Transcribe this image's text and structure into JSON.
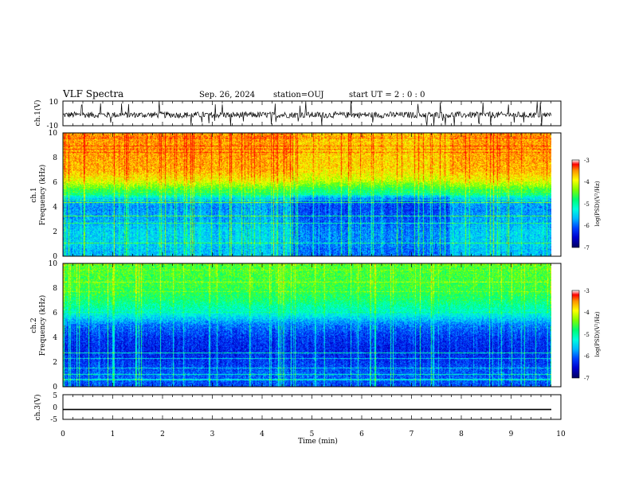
{
  "header": {
    "title": "VLF Spectra",
    "date": "Sep. 26, 2024",
    "station": "station=OUJ",
    "start": "start  UT  =   2 : 0  : 0"
  },
  "chart_data": [
    {
      "type": "line",
      "panel": "ch1-waveform",
      "ylabel": "ch.1(V)",
      "ylim": [
        -10,
        10
      ],
      "yticks": [
        "10",
        "-10"
      ],
      "xlim": [
        0,
        10
      ],
      "mean_level": -1.2,
      "noise_band": [
        -3.5,
        1.5
      ],
      "color": "#000000"
    },
    {
      "type": "heatmap",
      "panel": "ch1-spectrogram",
      "ylabel": "ch.1\nFrequency (kHz)",
      "ylim": [
        0,
        10
      ],
      "yticks": [
        "0",
        "2",
        "4",
        "6",
        "8",
        "10"
      ],
      "xlim": [
        0,
        9.85
      ],
      "profile": [
        {
          "f": 0.0,
          "v": -5.6
        },
        {
          "f": 0.5,
          "v": -5.6
        },
        {
          "f": 1.0,
          "v": -5.5
        },
        {
          "f": 2.0,
          "v": -5.5
        },
        {
          "f": 3.0,
          "v": -5.7
        },
        {
          "f": 4.0,
          "v": -5.8
        },
        {
          "f": 4.6,
          "v": -5.6
        },
        {
          "f": 5.0,
          "v": -4.9
        },
        {
          "f": 5.6,
          "v": -4.4
        },
        {
          "f": 6.2,
          "v": -3.9
        },
        {
          "f": 7.0,
          "v": -3.6
        },
        {
          "f": 8.0,
          "v": -3.55
        },
        {
          "f": 10.0,
          "v": -3.5
        }
      ],
      "quiet_interval_min": [
        4.6,
        7.8
      ],
      "colorbar": {
        "label": "log(PSD)(V²/Hz)",
        "range": [
          -7,
          -3
        ],
        "ticks": [
          "-3",
          "-4",
          "-5",
          "-6",
          "-7"
        ]
      }
    },
    {
      "type": "heatmap",
      "panel": "ch2-spectrogram",
      "ylabel": "ch.2\nFrequency (kHz)",
      "ylim": [
        0,
        10
      ],
      "yticks": [
        "0",
        "2",
        "4",
        "6",
        "8",
        "10"
      ],
      "xlim": [
        0,
        9.85
      ],
      "profile": [
        {
          "f": 0.0,
          "v": -6.1
        },
        {
          "f": 1.0,
          "v": -6.0
        },
        {
          "f": 2.0,
          "v": -6.2
        },
        {
          "f": 3.0,
          "v": -6.3
        },
        {
          "f": 4.0,
          "v": -6.2
        },
        {
          "f": 5.0,
          "v": -5.9
        },
        {
          "f": 6.0,
          "v": -5.2
        },
        {
          "f": 7.0,
          "v": -4.8
        },
        {
          "f": 8.0,
          "v": -4.6
        },
        {
          "f": 10.0,
          "v": -4.5
        }
      ],
      "colorbar": {
        "label": "log(PSD)(V²/Hz)",
        "range": [
          -7,
          -3
        ],
        "ticks": [
          "-3",
          "-4",
          "-5",
          "-6",
          "-7"
        ]
      }
    },
    {
      "type": "line",
      "panel": "ch3-waveform",
      "ylabel": "ch.3(V)",
      "ylim": [
        -5,
        5
      ],
      "yticks": [
        "5",
        "0",
        "-5"
      ],
      "xlim": [
        0,
        10
      ],
      "xlabel": "Time  (min)",
      "xticks": [
        "0",
        "1",
        "2",
        "3",
        "4",
        "5",
        "6",
        "7",
        "8",
        "9",
        "10"
      ],
      "level": -1.0,
      "color": "#000000"
    }
  ],
  "colormap": [
    "#000060",
    "#0000cc",
    "#0040ff",
    "#00b8ff",
    "#00ffdd",
    "#00ff70",
    "#7fff00",
    "#ffff00",
    "#ff9000",
    "#ff0000"
  ]
}
